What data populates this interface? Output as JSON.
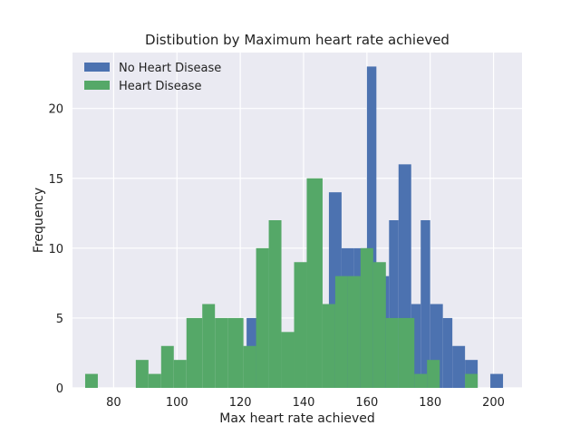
{
  "chart_data": {
    "type": "bar",
    "title": "Distibution by Maximum heart rate achieved",
    "xlabel": "Max heart rate achieved",
    "ylabel": "Frequency",
    "xlim": [
      67,
      209
    ],
    "ylim": [
      0,
      24
    ],
    "xticks": [
      80,
      100,
      120,
      140,
      160,
      180,
      200
    ],
    "yticks": [
      0,
      5,
      10,
      15,
      20
    ],
    "grid": true,
    "legend": "top-left",
    "series": [
      {
        "name": "No Heart Disease",
        "color": "#4c72b0",
        "bins": [
          {
            "x0": 122,
            "x1": 126,
            "count": 5
          },
          {
            "x0": 148,
            "x1": 152,
            "count": 14
          },
          {
            "x0": 152,
            "x1": 156,
            "count": 10
          },
          {
            "x0": 156,
            "x1": 160,
            "count": 10
          },
          {
            "x0": 160,
            "x1": 163,
            "count": 23
          },
          {
            "x0": 163,
            "x1": 167,
            "count": 8
          },
          {
            "x0": 167,
            "x1": 170,
            "count": 12
          },
          {
            "x0": 170,
            "x1": 174,
            "count": 16
          },
          {
            "x0": 174,
            "x1": 177,
            "count": 6
          },
          {
            "x0": 177,
            "x1": 180,
            "count": 12
          },
          {
            "x0": 180,
            "x1": 184,
            "count": 6
          },
          {
            "x0": 184,
            "x1": 187,
            "count": 5
          },
          {
            "x0": 187,
            "x1": 191,
            "count": 3
          },
          {
            "x0": 191,
            "x1": 195,
            "count": 2
          },
          {
            "x0": 199,
            "x1": 203,
            "count": 1
          }
        ]
      },
      {
        "name": "Heart Disease",
        "color": "#55a868",
        "bins": [
          {
            "x0": 71,
            "x1": 75,
            "count": 1
          },
          {
            "x0": 87,
            "x1": 91,
            "count": 2
          },
          {
            "x0": 91,
            "x1": 95,
            "count": 1
          },
          {
            "x0": 95,
            "x1": 99,
            "count": 3
          },
          {
            "x0": 99,
            "x1": 103,
            "count": 2
          },
          {
            "x0": 103,
            "x1": 108,
            "count": 5
          },
          {
            "x0": 108,
            "x1": 112,
            "count": 6
          },
          {
            "x0": 112,
            "x1": 116,
            "count": 5
          },
          {
            "x0": 116,
            "x1": 121,
            "count": 5
          },
          {
            "x0": 121,
            "x1": 125,
            "count": 3
          },
          {
            "x0": 125,
            "x1": 129,
            "count": 10
          },
          {
            "x0": 129,
            "x1": 133,
            "count": 12
          },
          {
            "x0": 133,
            "x1": 137,
            "count": 4
          },
          {
            "x0": 137,
            "x1": 141,
            "count": 9
          },
          {
            "x0": 141,
            "x1": 146,
            "count": 15
          },
          {
            "x0": 146,
            "x1": 150,
            "count": 6
          },
          {
            "x0": 150,
            "x1": 154,
            "count": 8
          },
          {
            "x0": 154,
            "x1": 158,
            "count": 8
          },
          {
            "x0": 158,
            "x1": 162,
            "count": 10
          },
          {
            "x0": 162,
            "x1": 166,
            "count": 9
          },
          {
            "x0": 166,
            "x1": 170,
            "count": 5
          },
          {
            "x0": 170,
            "x1": 175,
            "count": 5
          },
          {
            "x0": 175,
            "x1": 179,
            "count": 1
          },
          {
            "x0": 179,
            "x1": 183,
            "count": 2
          },
          {
            "x0": 191,
            "x1": 195,
            "count": 1
          }
        ]
      }
    ]
  }
}
